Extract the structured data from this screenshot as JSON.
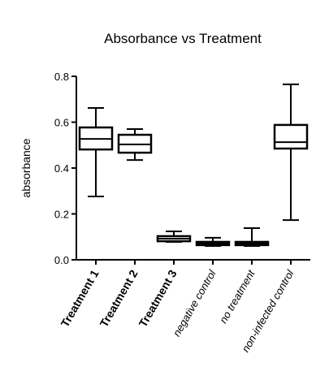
{
  "chart_data": {
    "type": "box",
    "title": "Absorbance vs Treatment",
    "y_label": "absorbance",
    "categories": [
      "Treatment 1",
      "Treatment 2",
      "Treatment 3",
      "negative control",
      "no treatment",
      "non-infected control"
    ],
    "category_styles": [
      "bold",
      "bold",
      "bold",
      "italic",
      "italic",
      "italic"
    ],
    "min": [
      0.276,
      0.435,
      0.078,
      0.06,
      0.06,
      0.173
    ],
    "q1": [
      0.481,
      0.467,
      0.081,
      0.064,
      0.064,
      0.485
    ],
    "median": [
      0.527,
      0.503,
      0.092,
      0.071,
      0.071,
      0.513
    ],
    "q3": [
      0.577,
      0.545,
      0.103,
      0.078,
      0.078,
      0.588
    ],
    "max": [
      0.662,
      0.57,
      0.124,
      0.096,
      0.138,
      0.765
    ],
    "color": "#000000",
    "ylim": [
      0,
      0.8
    ],
    "yticks": [
      {
        "value": 0,
        "label": "0.0"
      },
      0.2,
      0.4,
      0.6,
      0.8
    ],
    "grid": false
  }
}
